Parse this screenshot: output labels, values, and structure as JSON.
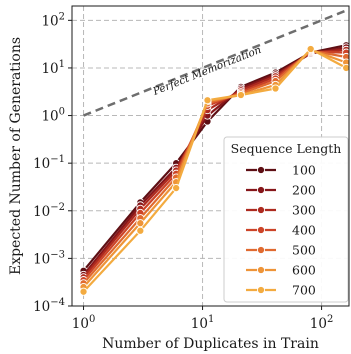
{
  "chart_data": {
    "type": "line",
    "xlabel": "Number of Duplicates in Train",
    "ylabel": "Expected Number of Generations",
    "xscale": "log",
    "yscale": "log",
    "xlim": [
      0.8,
      170
    ],
    "ylim": [
      0.0001,
      200
    ],
    "xticks": [
      {
        "value": 1,
        "label": "10^0"
      },
      {
        "value": 10,
        "label": "10^1"
      },
      {
        "value": 100,
        "label": "10^2"
      }
    ],
    "yticks": [
      {
        "value": 0.0001,
        "label": "10^-4"
      },
      {
        "value": 0.001,
        "label": "10^-3"
      },
      {
        "value": 0.01,
        "label": "10^-2"
      },
      {
        "value": 0.1,
        "label": "10^-1"
      },
      {
        "value": 1,
        "label": "10^0"
      },
      {
        "value": 10,
        "label": "10^1"
      },
      {
        "value": 100,
        "label": "10^2"
      }
    ],
    "grid": true,
    "legend": {
      "title": "Sequence Length",
      "placement": "lower-right"
    },
    "annotation": {
      "text": "Perfect Memorization",
      "x": [
        1,
        170
      ],
      "y": [
        1,
        170
      ],
      "color": "#6e6e6e"
    },
    "x": [
      1,
      3,
      6,
      11,
      21,
      41,
      81,
      161
    ],
    "series": [
      {
        "name": "100",
        "color": "#5e0f14",
        "values": [
          0.00055,
          0.015,
          0.1,
          0.75,
          4.0,
          8.0,
          21.0,
          30.0
        ]
      },
      {
        "name": "200",
        "color": "#86161a",
        "values": [
          0.00045,
          0.013,
          0.08,
          1.0,
          3.7,
          7.3,
          20.0,
          27.0
        ]
      },
      {
        "name": "300",
        "color": "#ad2a1f",
        "values": [
          0.0004,
          0.011,
          0.07,
          1.3,
          3.4,
          6.7,
          21.0,
          24.0
        ]
      },
      {
        "name": "400",
        "color": "#cc4428",
        "values": [
          0.00035,
          0.009,
          0.06,
          1.6,
          3.1,
          6.0,
          22.0,
          21.0
        ]
      },
      {
        "name": "500",
        "color": "#e06a30",
        "values": [
          0.0003,
          0.007,
          0.05,
          1.8,
          2.9,
          5.3,
          23.0,
          17.0
        ]
      },
      {
        "name": "600",
        "color": "#ee9438",
        "values": [
          0.00025,
          0.0055,
          0.04,
          2.0,
          2.7,
          4.4,
          24.0,
          13.0
        ]
      },
      {
        "name": "700",
        "color": "#f3ab40",
        "values": [
          0.0002,
          0.0038,
          0.03,
          2.1,
          2.7,
          3.7,
          25.0,
          10.0
        ]
      }
    ]
  }
}
